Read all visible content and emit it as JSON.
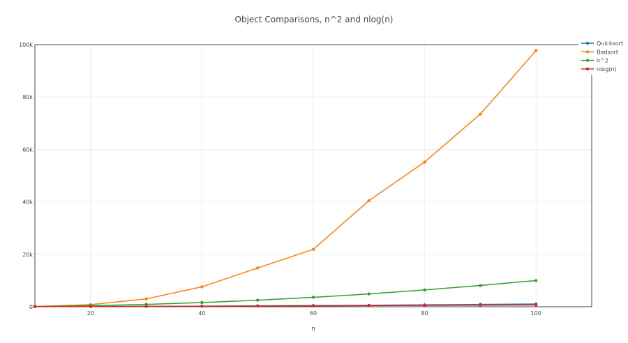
{
  "chart_data": {
    "type": "line",
    "title": "Object Comparisons, n^2 and nlog(n)",
    "xlabel": "n",
    "ylabel": "",
    "xlim": [
      10,
      110
    ],
    "ylim": [
      0,
      100000
    ],
    "x_ticks": [
      20,
      40,
      60,
      80,
      100
    ],
    "x_tick_labels": [
      "20",
      "40",
      "60",
      "80",
      "100"
    ],
    "y_ticks": [
      0,
      20000,
      40000,
      60000,
      80000,
      100000
    ],
    "y_tick_labels": [
      "0",
      "20k",
      "40k",
      "60k",
      "80k",
      "100k"
    ],
    "grid": true,
    "legend_position": "top-right",
    "x": [
      10,
      20,
      30,
      40,
      50,
      60,
      70,
      80,
      90,
      100
    ],
    "series": [
      {
        "name": "Quicksort",
        "color": "#1f77b4",
        "values": [
          40,
          100,
          160,
          230,
          350,
          450,
          560,
          720,
          900,
          1050
        ]
      },
      {
        "name": "Badsort",
        "color": "#ff7f0e",
        "values": [
          100,
          800,
          3000,
          7600,
          14800,
          21900,
          40500,
          55200,
          73500,
          97700
        ]
      },
      {
        "name": "n^2",
        "color": "#2ca02c",
        "values": [
          100,
          400,
          900,
          1600,
          2500,
          3600,
          4900,
          6400,
          8100,
          10000
        ]
      },
      {
        "name": "nlog(n)",
        "color": "#d62728",
        "values": [
          33,
          86,
          147,
          213,
          282,
          354,
          429,
          506,
          584,
          664
        ]
      }
    ]
  }
}
